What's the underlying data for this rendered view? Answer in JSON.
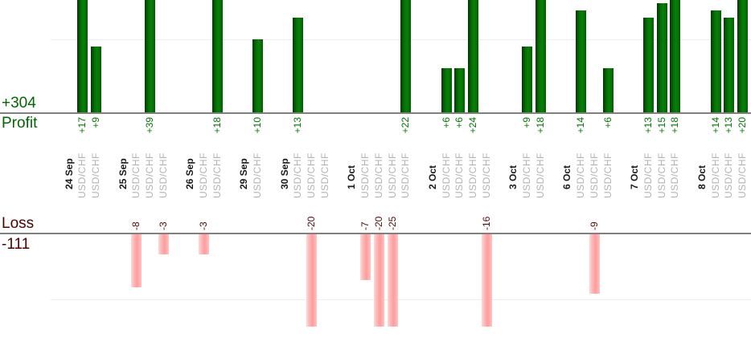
{
  "chart_data": {
    "type": "bar",
    "title": "",
    "instrument": "USD/CHF",
    "profit_panel": {
      "axis_label": "Profit",
      "total_label": "+304",
      "gridline_value": 10,
      "bars_clipped_at_top": true
    },
    "loss_panel": {
      "axis_label": "Loss",
      "total_label": "-111",
      "gridline_value": -10,
      "bars_clipped_at_bottom": true
    },
    "groups": [
      {
        "date": "24 Sep",
        "values": [
          17,
          9
        ]
      },
      {
        "date": "25 Sep",
        "values": [
          -8,
          39,
          -3
        ]
      },
      {
        "date": "26 Sep",
        "values": [
          -3,
          18
        ]
      },
      {
        "date": "29 Sep",
        "values": [
          10
        ]
      },
      {
        "date": "30 Sep",
        "values": [
          13,
          -20,
          0
        ]
      },
      {
        "date": "1 Oct",
        "values": [
          -7,
          -20,
          -25,
          22
        ]
      },
      {
        "date": "2 Oct",
        "values": [
          6,
          6,
          24,
          -16
        ]
      },
      {
        "date": "3 Oct",
        "values": [
          9,
          18
        ]
      },
      {
        "date": "6 Oct",
        "values": [
          14,
          -9,
          6
        ]
      },
      {
        "date": "7 Oct",
        "values": [
          13,
          15,
          18
        ]
      },
      {
        "date": "8 Oct",
        "values": [
          14,
          13,
          20
        ]
      }
    ],
    "colors": {
      "profit_bar": "#067806",
      "profit_text": "#006600",
      "profit_value_text": "#007700",
      "loss_bar": "#ff9e9e",
      "loss_text": "#4d0000",
      "loss_value_text": "#500a0a",
      "date_text": "#1a1a1a",
      "instrument_text": "#b2b2b2",
      "axis_line": "#808080",
      "gridline": "#ededed"
    },
    "layout": {
      "grid": "on",
      "legend": "none",
      "x_labels_rotated": true
    }
  }
}
